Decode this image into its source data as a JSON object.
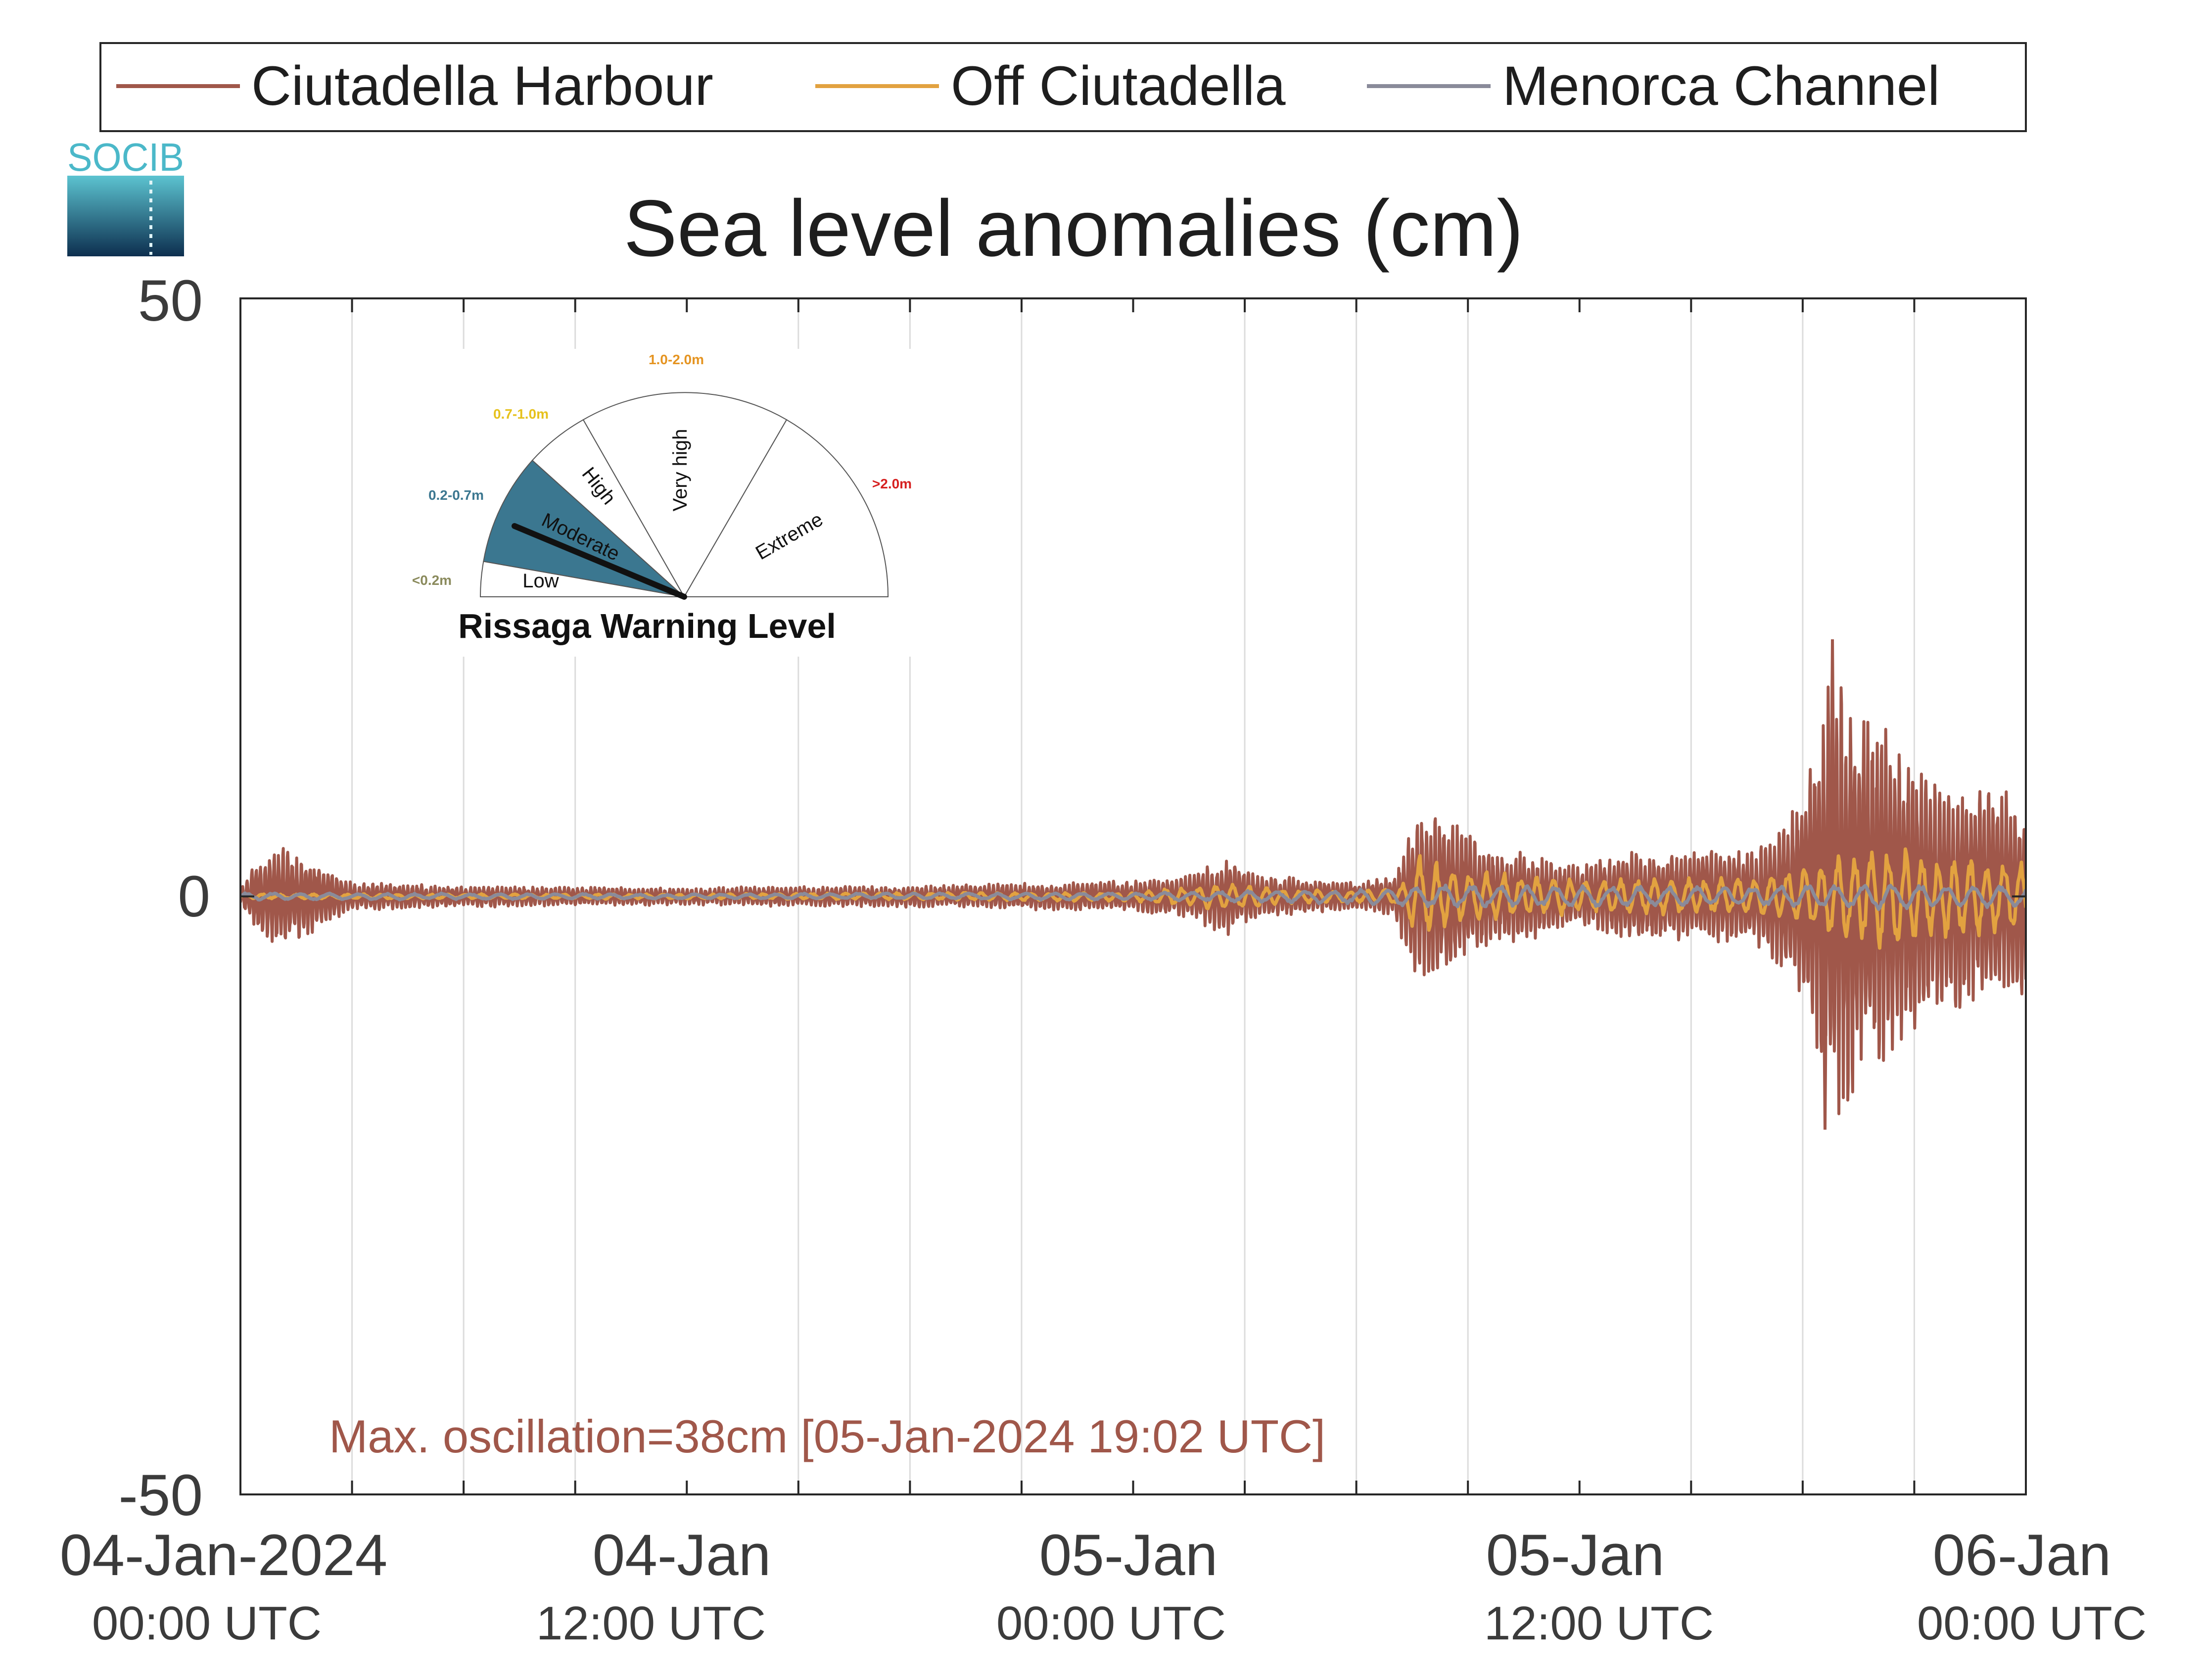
{
  "chart_data": {
    "type": "line",
    "title": "Sea level anomalies (cm)",
    "xlabel": "",
    "ylabel": "",
    "ylim": [
      -50,
      50
    ],
    "xlim_hours": [
      0,
      48
    ],
    "yticks": [
      "50",
      "0",
      "-50"
    ],
    "xticks": [
      {
        "hours": 0,
        "date": "04-Jan-2024",
        "time": "00:00 UTC"
      },
      {
        "hours": 12,
        "date": "04-Jan",
        "time": "12:00 UTC"
      },
      {
        "hours": 24,
        "date": "05-Jan",
        "time": "00:00 UTC"
      },
      {
        "hours": 36,
        "date": "05-Jan",
        "time": "12:00 UTC"
      },
      {
        "hours": 48,
        "date": "06-Jan",
        "time": "00:00 UTC"
      }
    ],
    "grid_hours": [
      3,
      6,
      9,
      15,
      18,
      21,
      27,
      30,
      33,
      39,
      42,
      45
    ],
    "grid": "vertical",
    "legend_position": "top",
    "series": [
      {
        "name": "Ciutadella Harbour",
        "color": "#a0574a",
        "envelope": [
          [
            0,
            0.5
          ],
          [
            0.5,
            3.5
          ],
          [
            1.2,
            4.2
          ],
          [
            2,
            3
          ],
          [
            3,
            1.2
          ],
          [
            6,
            0.9
          ],
          [
            9,
            0.8
          ],
          [
            12,
            0.7
          ],
          [
            15,
            0.9
          ],
          [
            18,
            0.9
          ],
          [
            21,
            1.1
          ],
          [
            24,
            1.3
          ],
          [
            25.5,
            1.8
          ],
          [
            26.5,
            3.4
          ],
          [
            27.5,
            1.8
          ],
          [
            30,
            1.2
          ],
          [
            31,
            1.6
          ],
          [
            31.5,
            6.5
          ],
          [
            32.5,
            6.8
          ],
          [
            33.5,
            4.2
          ],
          [
            34.5,
            3.8
          ],
          [
            36,
            2.5
          ],
          [
            37,
            3.8
          ],
          [
            39,
            3.8
          ],
          [
            41,
            4.5
          ],
          [
            42,
            9
          ],
          [
            42.8,
            20
          ],
          [
            43.5,
            16
          ],
          [
            44.3,
            14
          ],
          [
            45.5,
            10
          ],
          [
            46.5,
            9.5
          ],
          [
            48,
            8.5
          ]
        ],
        "max_cm": 21.5,
        "min_cm": -19.5
      },
      {
        "name": "Off Ciutadella",
        "color": "#e2a240",
        "envelope": [
          [
            0,
            0.2
          ],
          [
            12,
            0.2
          ],
          [
            24,
            0.4
          ],
          [
            26.5,
            1.2
          ],
          [
            28,
            0.6
          ],
          [
            30,
            0.5
          ],
          [
            31.2,
            0.8
          ],
          [
            31.6,
            3.5
          ],
          [
            33,
            2.2
          ],
          [
            36,
            1.5
          ],
          [
            40,
            1.6
          ],
          [
            42,
            2.5
          ],
          [
            44,
            4.5
          ],
          [
            46,
            3.5
          ],
          [
            48,
            3
          ]
        ]
      },
      {
        "name": "Menorca Channel",
        "color": "#8a8b9a",
        "envelope": [
          [
            0,
            0.3
          ],
          [
            12,
            0.2
          ],
          [
            24,
            0.3
          ],
          [
            30,
            0.6
          ],
          [
            32,
            1
          ],
          [
            36,
            0.9
          ],
          [
            40,
            0.8
          ],
          [
            44,
            1.1
          ],
          [
            48,
            0.9
          ]
        ]
      }
    ],
    "annotation": "Max. oscillation=38cm [05-Jan-2024 19:02 UTC]"
  },
  "legend": {
    "entries": [
      {
        "label": "Ciutadella Harbour",
        "color": "#a0574a"
      },
      {
        "label": "Off Ciutadella",
        "color": "#e2a240"
      },
      {
        "label": "Menorca Channel",
        "color": "#8a8b9a"
      }
    ]
  },
  "logo": {
    "text": "SOCIB"
  },
  "gauge": {
    "title": "Rissaga Warning Level",
    "current_level": "Moderate",
    "levels": [
      {
        "name": "Low",
        "range": "<0.2m",
        "color": "#8a8a5c"
      },
      {
        "name": "Moderate",
        "range": "0.2-0.7m",
        "color": "#3b7790"
      },
      {
        "name": "High",
        "range": "0.7-1.0m",
        "color": "#e6c11c"
      },
      {
        "name": "Very high",
        "range": "1.0-2.0m",
        "color": "#e59421"
      },
      {
        "name": "Extreme",
        "range": ">2.0m",
        "color": "#d62020"
      }
    ]
  }
}
